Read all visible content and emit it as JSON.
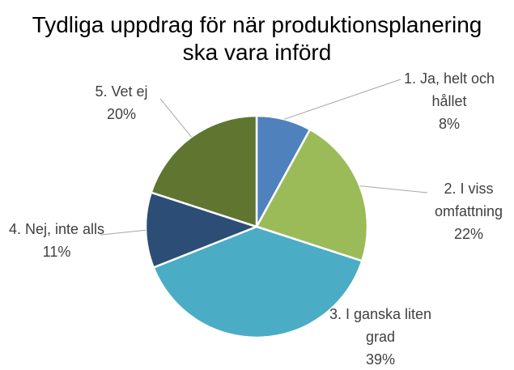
{
  "chart_data": {
    "type": "pie",
    "title": "Tydliga uppdrag för när produktionsplanering ska vara införd",
    "categories": [
      "1. Ja, helt och hållet",
      "2. I viss omfattning",
      "3. I ganska liten grad",
      "4. Nej, inte alls",
      "5. Vet ej"
    ],
    "values": [
      8,
      22,
      39,
      11,
      20
    ],
    "value_labels": [
      "8%",
      "22%",
      "39%",
      "11%",
      "20%"
    ],
    "colors": [
      "#4f81bd",
      "#9bbb59",
      "#4bacc6",
      "#2c4d75",
      "#5f7530"
    ]
  }
}
